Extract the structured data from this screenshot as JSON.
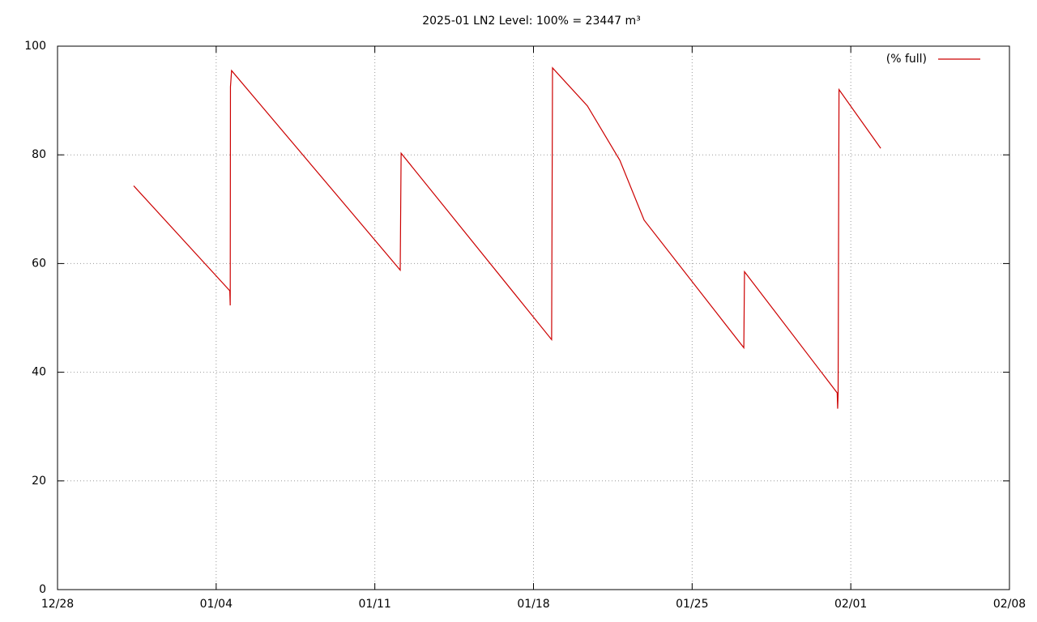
{
  "chart_data": {
    "type": "line",
    "title": "2025-01 LN2 Level: 100% = 23447 m³",
    "x": [
      3.36,
      7.6,
      7.62,
      7.63,
      7.68,
      15.12,
      15.16,
      21.8,
      21.84,
      23.38,
      24.81,
      25.88,
      30.28,
      30.31,
      34.4,
      34.42,
      34.44,
      34.48,
      36.32
    ],
    "series": [
      {
        "name": "(% full)",
        "color": "#cc0000",
        "values": [
          74.3,
          55,
          52.3,
          92.5,
          95.5,
          58.8,
          80.3,
          46,
          96,
          89,
          79,
          68,
          44.5,
          58.5,
          36.2,
          33.3,
          36,
          92,
          81.2
        ]
      }
    ],
    "xlim": [
      0,
      42
    ],
    "xticks": [
      {
        "value": 0,
        "label": "12/28"
      },
      {
        "value": 7,
        "label": "01/04"
      },
      {
        "value": 14,
        "label": "01/11"
      },
      {
        "value": 21,
        "label": "01/18"
      },
      {
        "value": 28,
        "label": "01/25"
      },
      {
        "value": 35,
        "label": "02/01"
      },
      {
        "value": 42,
        "label": "02/08"
      }
    ],
    "ylim": [
      0,
      100
    ],
    "yticks": [
      0,
      20,
      40,
      60,
      80,
      100
    ],
    "grid": true,
    "legend": "top-right"
  }
}
